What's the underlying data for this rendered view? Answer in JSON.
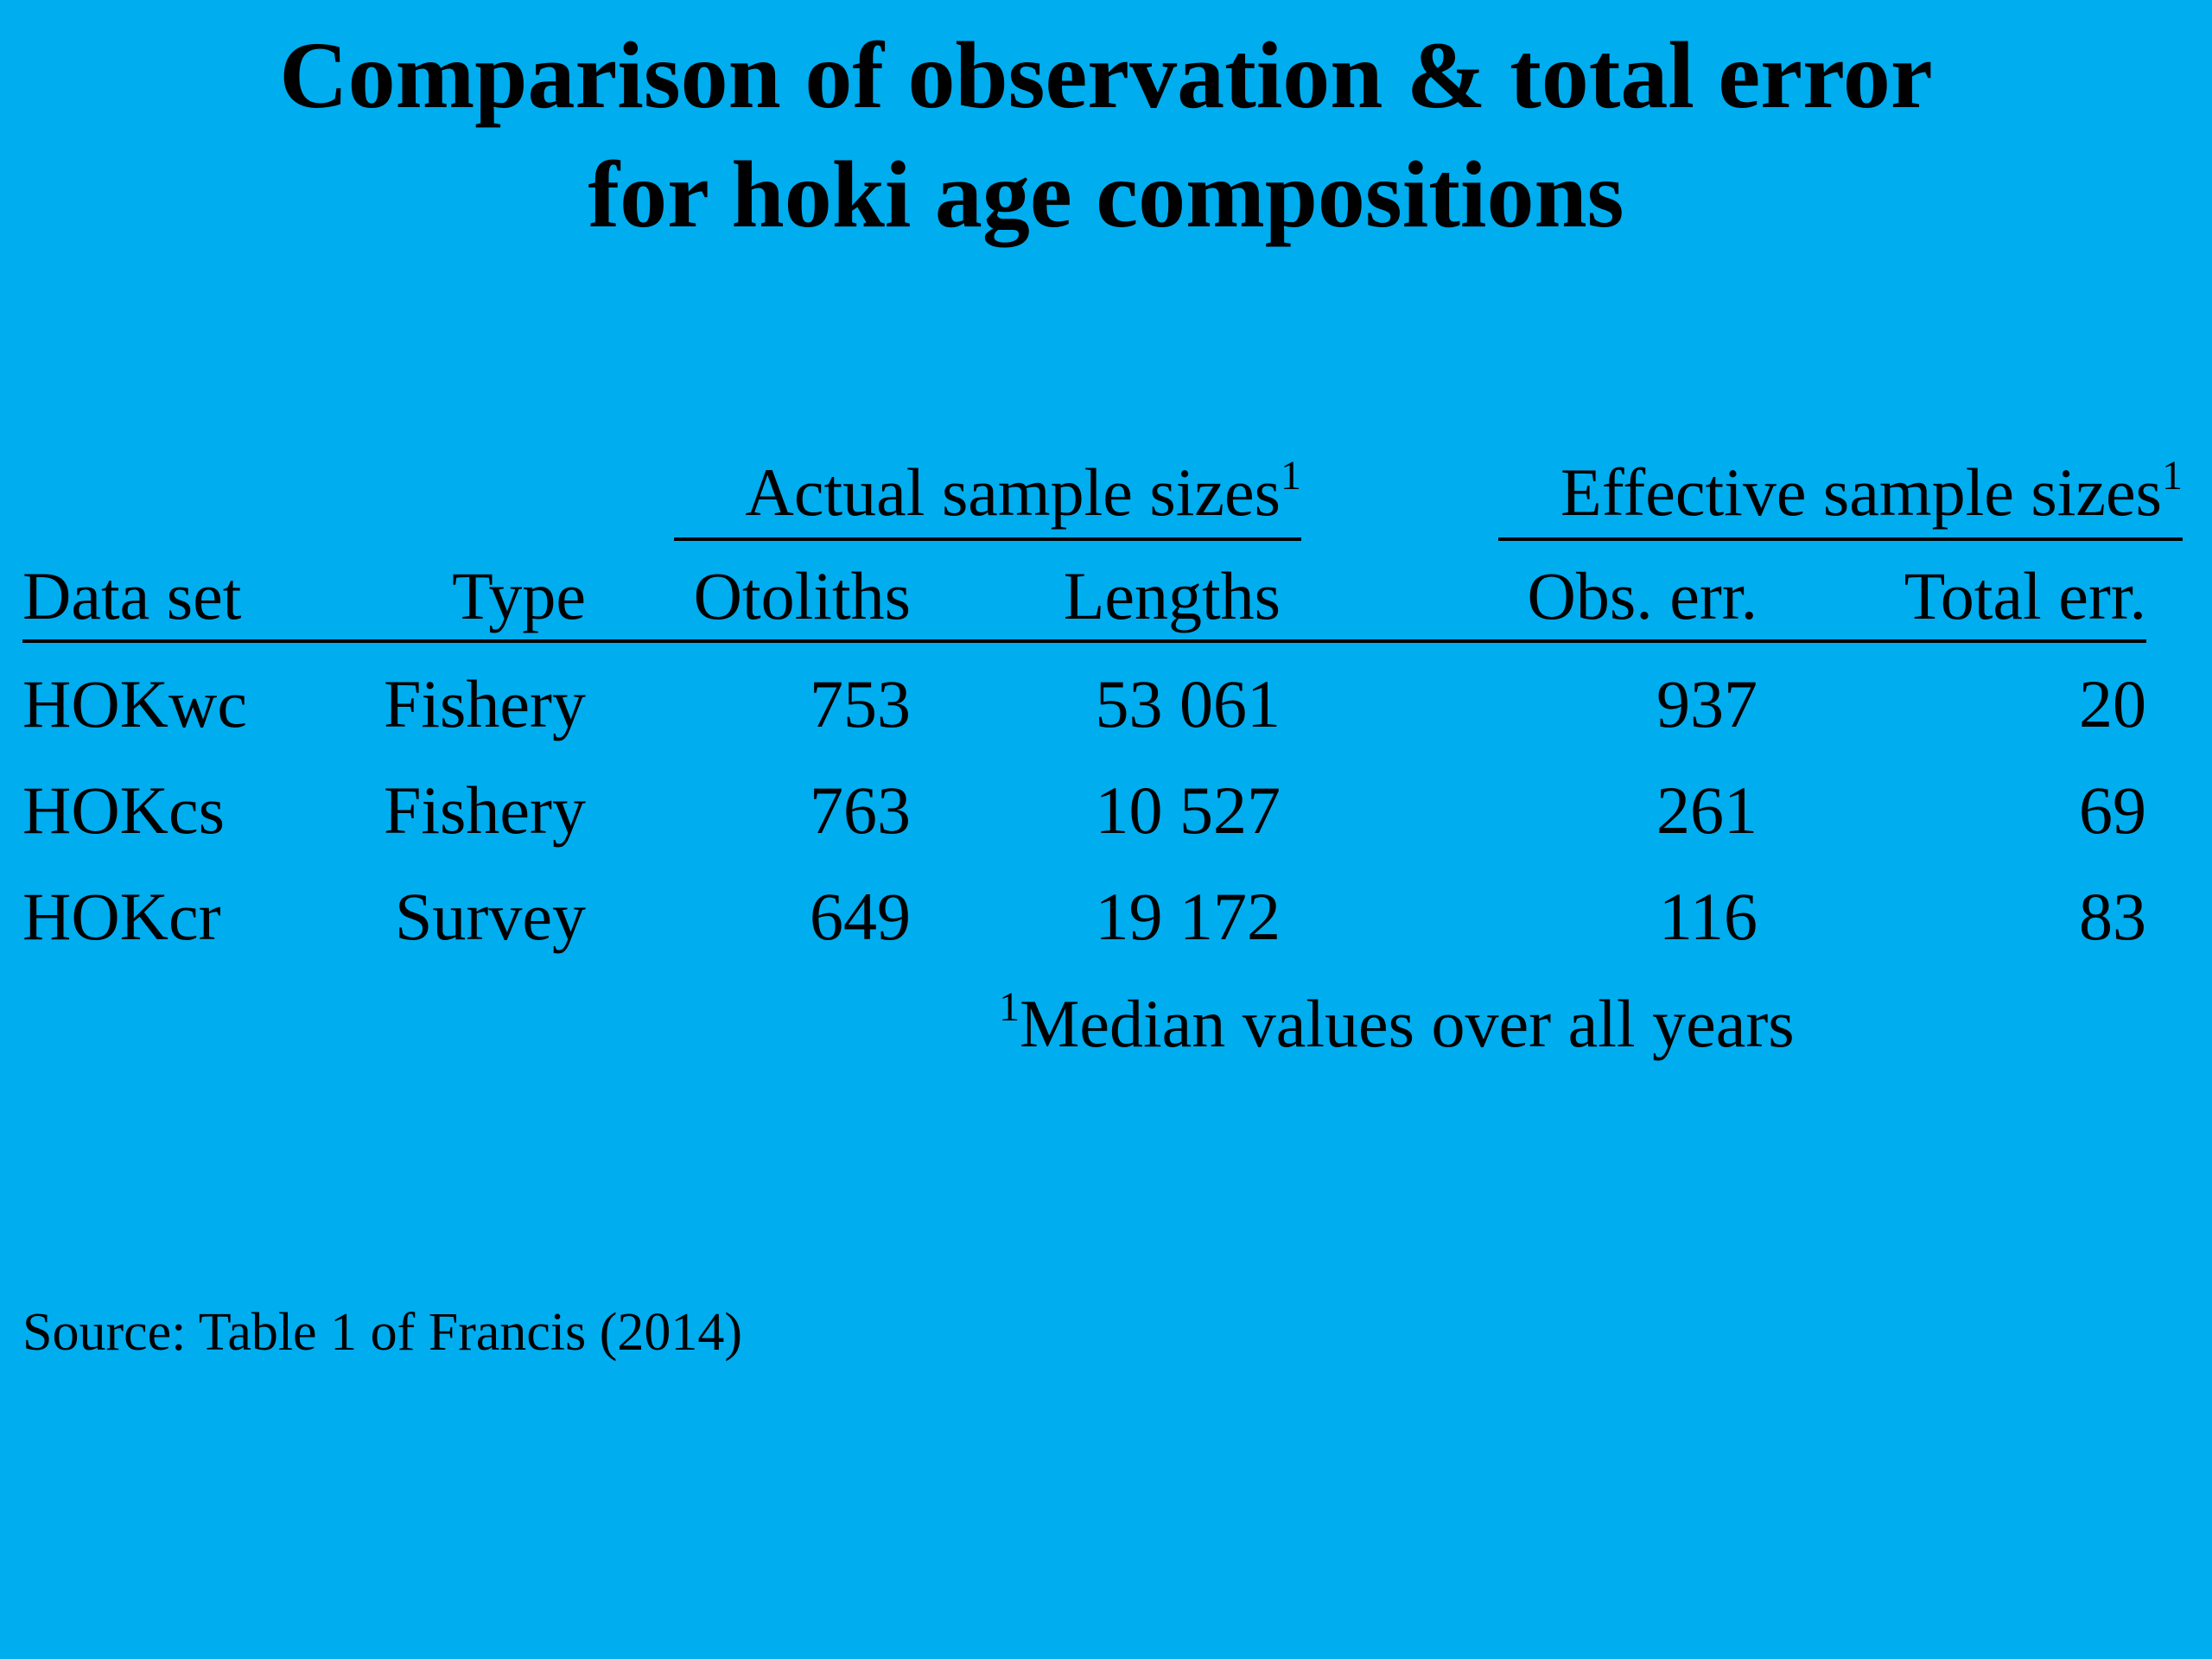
{
  "title": {
    "line1": "Comparison of observation & total error",
    "line2": "for hoki age compositions"
  },
  "group_headers": {
    "actual": "Actual sample sizes",
    "actual_marker": "1",
    "effective": "Effective sample sizes",
    "effective_marker": "1"
  },
  "table": {
    "columns": [
      "Data set",
      "Type",
      "Otoliths",
      "Lengths",
      "Obs. err.",
      "Total err."
    ],
    "rows": [
      [
        "HOKwc",
        "Fishery",
        "753",
        "53 061",
        "937",
        "20"
      ],
      [
        "HOKcs",
        "Fishery",
        "763",
        "10 527",
        "261",
        "69"
      ],
      [
        "HOKcr",
        "Survey",
        "649",
        "19 172",
        "116",
        "83"
      ]
    ]
  },
  "footnote": {
    "marker": "1",
    "text": "Median values over all years"
  },
  "source": "Source: Table 1 of Francis (2014)",
  "colors": {
    "background": "#00adef",
    "text": "#000000"
  }
}
